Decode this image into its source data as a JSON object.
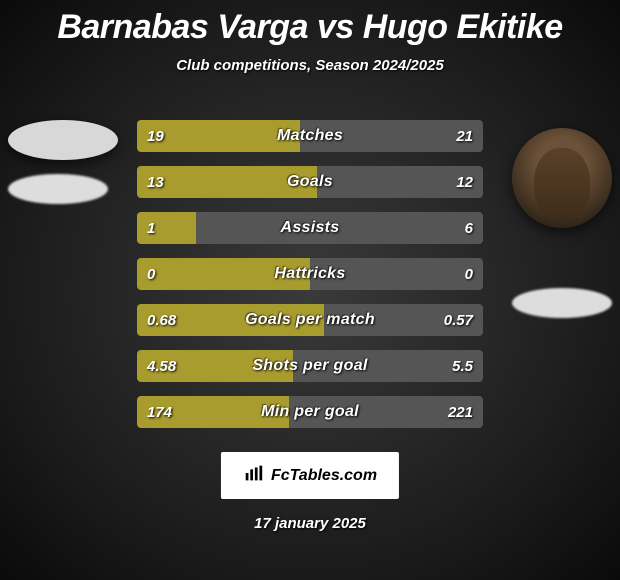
{
  "title_color": "#e8e8e8",
  "player_left": "Barnabas Varga",
  "vs": "vs",
  "player_right": "Hugo Ekitike",
  "subtitle": "Club competitions, Season 2024/2025",
  "colors": {
    "left_bar": "#a99c2e",
    "right_bar": "#555555"
  },
  "rows": [
    {
      "label": "Matches",
      "left": "19",
      "right": "21",
      "left_pct": 47,
      "right_pct": 53
    },
    {
      "label": "Goals",
      "left": "13",
      "right": "12",
      "left_pct": 52,
      "right_pct": 48
    },
    {
      "label": "Assists",
      "left": "1",
      "right": "6",
      "left_pct": 17,
      "right_pct": 83
    },
    {
      "label": "Hattricks",
      "left": "0",
      "right": "0",
      "left_pct": 50,
      "right_pct": 50
    },
    {
      "label": "Goals per match",
      "left": "0.68",
      "right": "0.57",
      "left_pct": 54,
      "right_pct": 46
    },
    {
      "label": "Shots per goal",
      "left": "4.58",
      "right": "5.5",
      "left_pct": 45,
      "right_pct": 55
    },
    {
      "label": "Min per goal",
      "left": "174",
      "right": "221",
      "left_pct": 44,
      "right_pct": 56
    }
  ],
  "brand": "FcTables.com",
  "date": "17 january 2025"
}
